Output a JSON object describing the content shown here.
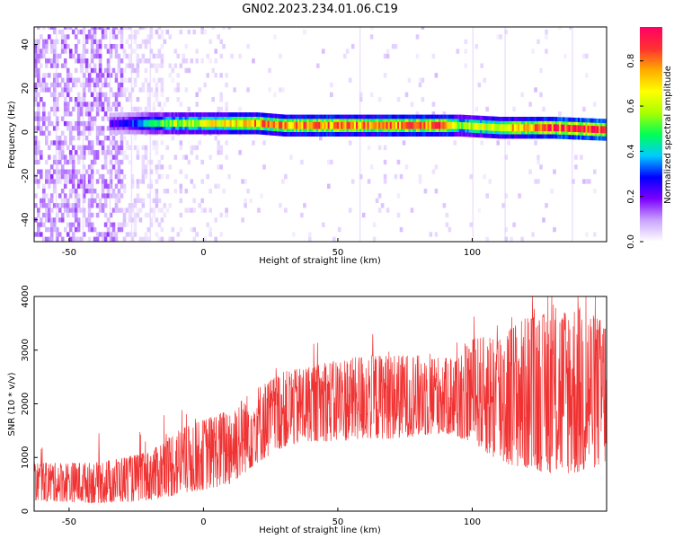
{
  "figure": {
    "title": "GN02.2023.234.01.06.C19"
  },
  "chart_data": [
    {
      "type": "heatmap",
      "title": "",
      "xlabel": "Height of straight line (km)",
      "ylabel": "Frequency (Hz)",
      "xlim": [
        -63,
        150
      ],
      "ylim": [
        -50,
        48
      ],
      "xticks": [
        -50,
        0,
        50,
        100
      ],
      "yticks": [
        -40,
        -20,
        0,
        20,
        40
      ],
      "colorbar": {
        "label": "Normalized spectral amplitude",
        "range": [
          0.0,
          0.95
        ],
        "ticks": [
          0.0,
          0.2,
          0.4,
          0.6,
          0.8
        ],
        "colors": [
          "#ffffff",
          "#c9a3ff",
          "#7c00ff",
          "#0000ff",
          "#00ccff",
          "#00ff55",
          "#aaff00",
          "#ffff00",
          "#ffaa00",
          "#ff3030",
          "#ff0066"
        ]
      },
      "ridge": {
        "x": [
          -63,
          -30,
          -20,
          -10,
          0,
          20,
          30,
          50,
          60,
          80,
          90,
          95,
          110,
          130,
          150
        ],
        "frequency": [
          3,
          4,
          4,
          4,
          4,
          4,
          3,
          3,
          3,
          3,
          3,
          3,
          2,
          2,
          1
        ],
        "peak_amplitude": [
          0.15,
          0.25,
          0.45,
          0.6,
          0.65,
          0.8,
          0.8,
          0.85,
          0.8,
          0.85,
          0.85,
          0.6,
          0.7,
          0.9,
          0.95
        ]
      }
    },
    {
      "type": "line",
      "title": "",
      "xlabel": "Height of straight line (km)",
      "ylabel": "SNR (10 * v/v)",
      "xlim": [
        -63,
        150
      ],
      "ylim": [
        0,
        4000
      ],
      "xticks": [
        -50,
        0,
        50,
        100
      ],
      "yticks": [
        0,
        1000,
        2000,
        3000,
        4000
      ],
      "color": "#f03232",
      "envelope": {
        "x": [
          -63,
          -40,
          -20,
          -10,
          0,
          10,
          20,
          30,
          40,
          50,
          60,
          70,
          80,
          90,
          95,
          100,
          110,
          120,
          130,
          140,
          150
        ],
        "low": [
          200,
          150,
          200,
          300,
          400,
          500,
          900,
          1200,
          1300,
          1300,
          1350,
          1350,
          1400,
          1450,
          1350,
          1300,
          900,
          800,
          700,
          700,
          900
        ],
        "high": [
          900,
          900,
          1100,
          1500,
          1700,
          1900,
          2300,
          2600,
          2700,
          2800,
          2900,
          2900,
          2900,
          2850,
          2900,
          3200,
          3300,
          3600,
          3700,
          3800,
          3500
        ]
      }
    }
  ]
}
